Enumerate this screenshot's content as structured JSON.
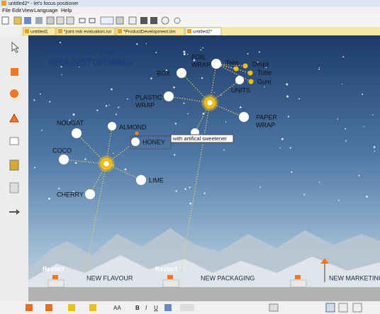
{
  "window": {
    "title": "untitled2* - let's focus positioner"
  },
  "menu": [
    "File",
    "Edit",
    "View",
    "Language",
    "Help"
  ],
  "tabs": [
    "untitled1",
    "*joint risk evaluation.rul",
    "*ProductDevelopment.tim",
    "untitled2*"
  ],
  "canvas": {
    "title": [
      "PRODUCT RE-LAUNCH",
      "BRAINSTORMING"
    ],
    "nodes": [
      {
        "label": [
          "FOIL",
          "WRAP"
        ]
      },
      {
        "label": [
          "Tabs"
        ]
      },
      {
        "label": [
          "Drops"
        ]
      },
      {
        "label": [
          "Tube"
        ]
      },
      {
        "label": [
          "Gum"
        ]
      },
      {
        "label": [
          "BOX"
        ]
      },
      {
        "label": [
          "UNITS"
        ]
      },
      {
        "label": [
          "PLASTIC",
          "WRAP"
        ]
      },
      {
        "label": [
          "PAPER",
          "WRAP"
        ]
      },
      {
        "label": [
          "NOUGAT"
        ]
      },
      {
        "label": [
          "ALMOND"
        ]
      },
      {
        "label": [
          "HONEY"
        ]
      },
      {
        "label": [
          "COCO"
        ]
      },
      {
        "label": [
          "LIME"
        ]
      },
      {
        "label": [
          "CHERRY"
        ]
      }
    ],
    "tooltip": "with artifical sweetener",
    "milestones": [
      {
        "status": "Restart",
        "label": "NEW FLAVOUR"
      },
      {
        "status": "Restart",
        "label": "NEW PACKAGING"
      },
      {
        "label": "NEW MARKETING"
      }
    ]
  },
  "toolbar": {
    "font_size": "AA",
    "bold": "B",
    "italic": "I",
    "underline": "U"
  }
}
